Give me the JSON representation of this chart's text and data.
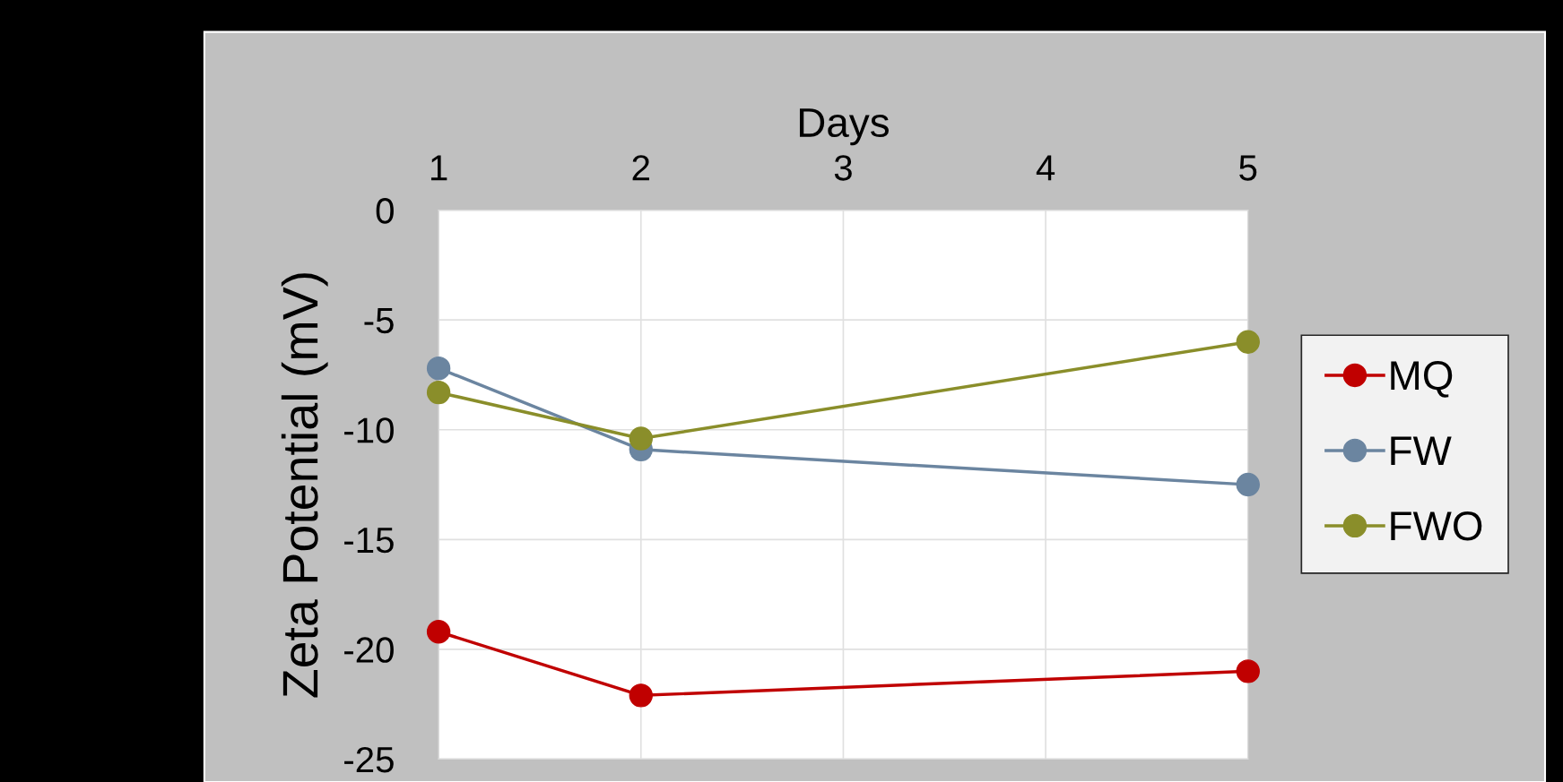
{
  "chart_data": {
    "type": "line",
    "xlabel": "Days",
    "ylabel": "Zeta Potential (mV)",
    "x": [
      1,
      2,
      5
    ],
    "series": [
      {
        "name": "MQ",
        "color": "#c00000",
        "values": [
          -19.2,
          -22.1,
          -21.0
        ]
      },
      {
        "name": "FW",
        "color": "#6b85a0",
        "values": [
          -7.2,
          -10.9,
          -12.5
        ]
      },
      {
        "name": "FWO",
        "color": "#8a8e2a",
        "values": [
          -8.3,
          -10.4,
          -6.0
        ]
      }
    ],
    "xlim": [
      1,
      5
    ],
    "xticks": [
      1,
      2,
      3,
      4,
      5
    ],
    "ylim": [
      -25,
      0
    ],
    "yticks": [
      -25,
      -20,
      -15,
      -10,
      -5,
      0
    ],
    "grid": true,
    "legend": "right",
    "marker": "circle",
    "line_style": "solid"
  }
}
